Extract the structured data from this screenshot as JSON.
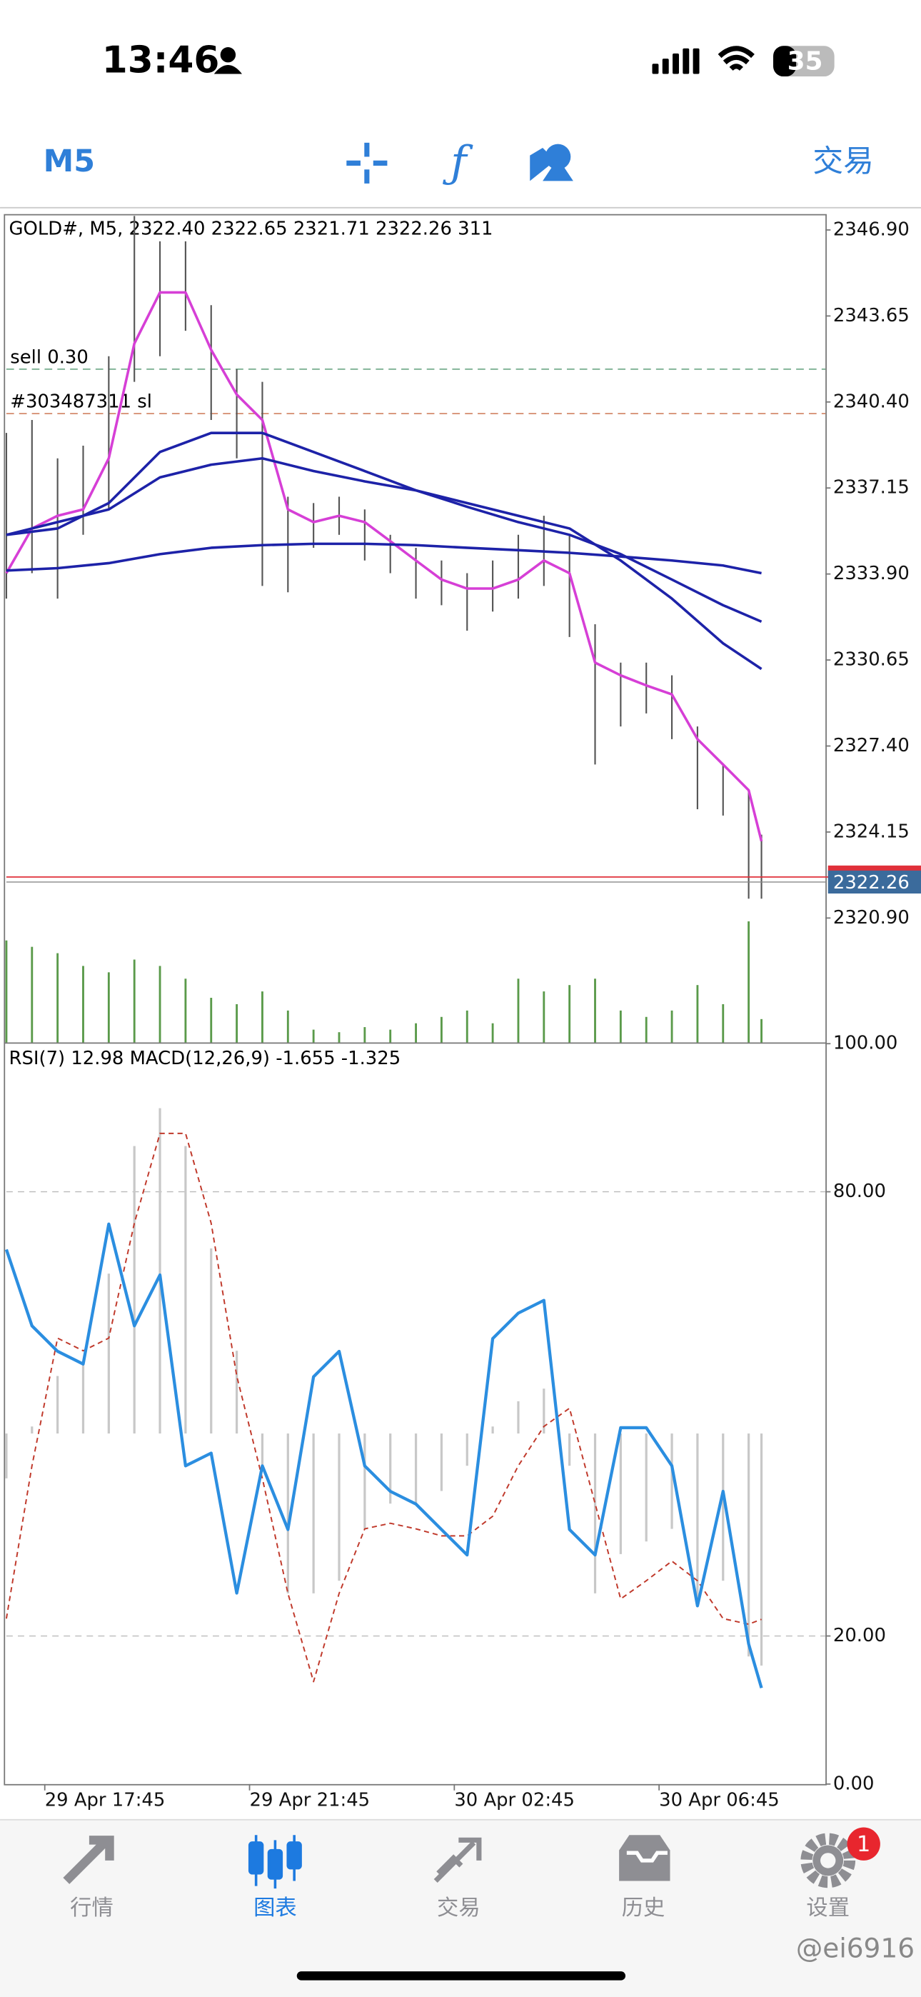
{
  "status_bar": {
    "time": "13:46",
    "battery": "35"
  },
  "toolbar": {
    "timeframe": "M5",
    "trade": "交易"
  },
  "chart_data": [
    {
      "type": "line",
      "title": "GOLD#, M5, 2322.40 2322.65 2321.71 2322.26 311",
      "xlim": [
        0,
        192
      ],
      "ylim": [
        2316.2,
        2347.5
      ],
      "yticks": [
        {
          "value": 2346.9,
          "label": "2346.90"
        },
        {
          "value": 2343.65,
          "label": "2343.65"
        },
        {
          "value": 2340.4,
          "label": "2340.40"
        },
        {
          "value": 2337.15,
          "label": "2337.15"
        },
        {
          "value": 2333.9,
          "label": "2333.90"
        },
        {
          "value": 2330.65,
          "label": "2330.65"
        },
        {
          "value": 2327.4,
          "label": "2327.40"
        },
        {
          "value": 2324.15,
          "label": "2324.15"
        },
        {
          "value": 2320.9,
          "label": "2320.90"
        }
      ],
      "annotations": [
        {
          "text": "sell 0.30",
          "value": 2341.64,
          "color": "#5f9f7a"
        },
        {
          "text": "#303487311 sl",
          "value": 2339.96,
          "color": "#d08060"
        }
      ],
      "ask_line": 2322.45,
      "ask_color": "#e0303a",
      "last_price": 2322.26,
      "last_color": "#3b6b9c",
      "x": [
        0,
        6,
        12,
        18,
        24,
        30,
        36,
        42,
        48,
        54,
        60,
        66,
        72,
        78,
        84,
        90,
        96,
        102,
        108,
        114,
        120,
        126,
        132,
        138,
        144,
        150,
        156,
        162,
        168,
        174,
        177
      ],
      "high": [
        2339.23,
        2339.72,
        2338.27,
        2338.75,
        2342.13,
        2347.43,
        2346.47,
        2346.47,
        2344.06,
        2341.64,
        2341.16,
        2336.82,
        2336.58,
        2336.82,
        2336.34,
        2335.38,
        2334.89,
        2334.41,
        2333.93,
        2334.41,
        2335.38,
        2336.1,
        2335.38,
        2332.0,
        2330.55,
        2330.55,
        2330.07,
        2328.14,
        2326.7,
        2325.73,
        2324.05
      ],
      "low": [
        2332.97,
        2333.93,
        2332.97,
        2335.38,
        2336.34,
        2341.16,
        2342.13,
        2343.09,
        2339.72,
        2338.27,
        2333.45,
        2333.21,
        2334.89,
        2335.38,
        2334.41,
        2333.93,
        2332.97,
        2332.72,
        2331.76,
        2332.48,
        2332.97,
        2333.45,
        2331.52,
        2326.7,
        2328.14,
        2328.63,
        2327.66,
        2325.01,
        2324.77,
        2321.63,
        2321.63
      ],
      "range_color": "#555555",
      "series": [
        {
          "color": "#d63fd6",
          "values": [
            2333.93,
            2335.62,
            2336.1,
            2336.34,
            2338.27,
            2342.61,
            2344.54,
            2344.54,
            2342.37,
            2340.68,
            2339.72,
            2336.34,
            2335.86,
            2336.1,
            2335.86,
            2335.14,
            2334.41,
            2333.69,
            2333.35,
            2333.35,
            2333.69,
            2334.41,
            2333.93,
            2330.55,
            2330.07,
            2329.69,
            2329.35,
            2327.66,
            2326.7,
            2325.73,
            2323.8
          ]
        },
        {
          "color": "#1d22a8",
          "x": [
            0,
            12,
            24,
            36,
            48,
            60,
            72,
            84,
            96,
            108,
            120,
            132,
            144,
            156,
            168,
            177
          ],
          "values": [
            2335.38,
            2335.62,
            2336.58,
            2338.51,
            2339.23,
            2339.23,
            2338.51,
            2337.79,
            2337.06,
            2336.58,
            2336.1,
            2335.62,
            2334.41,
            2332.97,
            2331.28,
            2330.31
          ]
        },
        {
          "color": "#1d22a8",
          "x": [
            0,
            12,
            24,
            36,
            48,
            60,
            72,
            84,
            96,
            108,
            120,
            132,
            144,
            156,
            168,
            177
          ],
          "values": [
            2335.38,
            2335.86,
            2336.34,
            2337.55,
            2338.03,
            2338.27,
            2337.79,
            2337.4,
            2337.06,
            2336.44,
            2335.86,
            2335.38,
            2334.65,
            2333.69,
            2332.72,
            2332.1
          ]
        },
        {
          "color": "#1d22a8",
          "x": [
            0,
            12,
            24,
            36,
            48,
            60,
            72,
            84,
            96,
            108,
            120,
            132,
            144,
            156,
            168,
            177
          ],
          "values": [
            2334.03,
            2334.12,
            2334.31,
            2334.65,
            2334.89,
            2334.99,
            2335.04,
            2335.04,
            2334.99,
            2334.89,
            2334.8,
            2334.7,
            2334.56,
            2334.41,
            2334.22,
            2333.93
          ]
        }
      ]
    },
    {
      "type": "bar",
      "xlim": [
        0,
        192
      ],
      "ylim": [
        0,
        1700
      ],
      "color": "#5a9a4a",
      "x": [
        0,
        6,
        12,
        18,
        24,
        30,
        36,
        42,
        48,
        54,
        60,
        66,
        72,
        78,
        84,
        90,
        96,
        102,
        108,
        114,
        120,
        126,
        132,
        138,
        144,
        150,
        156,
        162,
        168,
        174,
        177
      ],
      "values": [
        1360,
        1275,
        1190,
        1020,
        935,
        1105,
        1020,
        850,
        595,
        510,
        680,
        425,
        170,
        136,
        204,
        170,
        255,
        340,
        425,
        255,
        850,
        680,
        765,
        850,
        425,
        340,
        425,
        765,
        510,
        1615,
        311
      ]
    },
    {
      "type": "line",
      "title": "RSI(7) 12.98 MACD(12,26,9) -1.655 -1.325",
      "xlim": [
        0,
        192
      ],
      "ylim": [
        0,
        100
      ],
      "y2lim": [
        -2.5,
        2.78
      ],
      "yticks": [
        {
          "value": 100,
          "label": "100.00"
        },
        {
          "value": 80,
          "label": "80.00"
        },
        {
          "value": 20,
          "label": "20.00"
        },
        {
          "value": 0,
          "label": "0.00"
        }
      ],
      "xticks": [
        {
          "value": 9,
          "label": "29 Apr 17:45"
        },
        {
          "value": 57,
          "label": "29 Apr 21:45"
        },
        {
          "value": 105,
          "label": "30 Apr 02:45"
        },
        {
          "value": 153,
          "label": "30 Apr 06:45"
        }
      ],
      "x": [
        0,
        6,
        12,
        18,
        24,
        30,
        36,
        42,
        48,
        54,
        60,
        66,
        72,
        78,
        84,
        90,
        96,
        102,
        108,
        114,
        120,
        126,
        132,
        138,
        144,
        150,
        156,
        162,
        168,
        174,
        177
      ],
      "series": [
        {
          "type": "bar",
          "axis": "y2",
          "color": "#c8c8c8",
          "values": [
            -0.32,
            0.05,
            0.41,
            0.5,
            1.14,
            2.05,
            2.32,
            2.05,
            1.32,
            0.59,
            -0.23,
            -1.14,
            -1.14,
            -1.05,
            -0.68,
            -0.5,
            -0.5,
            -0.41,
            -0.23,
            0.05,
            0.23,
            0.32,
            -0.23,
            -1.14,
            -0.86,
            -0.77,
            -0.68,
            -1.23,
            -1.05,
            -1.59,
            -1.655
          ]
        },
        {
          "type": "line",
          "axis": "y2",
          "color": "#c0392b",
          "dashed": true,
          "values": [
            -1.32,
            -0.23,
            0.68,
            0.59,
            0.68,
            1.5,
            2.14,
            2.14,
            1.5,
            0.41,
            -0.32,
            -1.14,
            -1.77,
            -1.14,
            -0.68,
            -0.64,
            -0.68,
            -0.73,
            -0.73,
            -0.59,
            -0.23,
            0.05,
            0.18,
            -0.5,
            -1.18,
            -1.05,
            -0.91,
            -1.05,
            -1.32,
            -1.36,
            -1.325
          ]
        },
        {
          "type": "line",
          "color": "#2b8ee0",
          "values": [
            72.2,
            61.89,
            58.45,
            56.73,
            75.64,
            61.89,
            68.76,
            42.98,
            44.7,
            25.79,
            42.98,
            34.38,
            55.01,
            58.45,
            42.98,
            39.54,
            37.82,
            34.38,
            30.94,
            60.17,
            63.61,
            65.33,
            34.38,
            30.94,
            48.13,
            48.13,
            42.98,
            24.07,
            39.54,
            18.91,
            12.98
          ]
        }
      ]
    }
  ],
  "tab_bar": {
    "tabs": [
      "行情",
      "图表",
      "交易",
      "历史",
      "设置"
    ],
    "badge": "1"
  },
  "watermark": "@ei6916"
}
